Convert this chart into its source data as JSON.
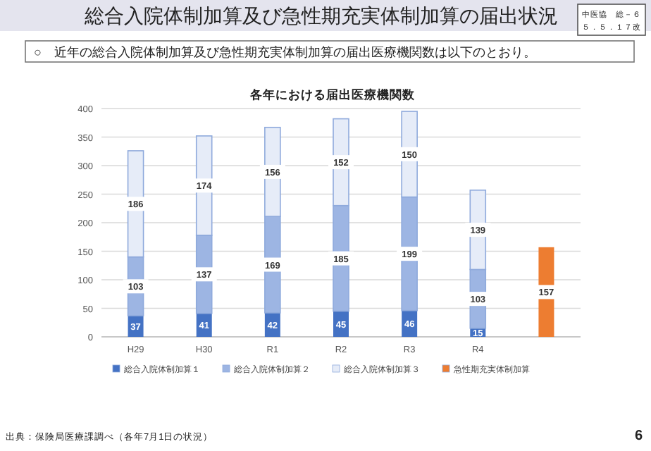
{
  "chart_data": {
    "type": "bar",
    "title": "各年における届出医療機関数",
    "categories": [
      "H29",
      "H30",
      "R1",
      "R2",
      "R3",
      "R4",
      null
    ],
    "series": [
      {
        "name": "総合入院体制加算１",
        "color": "#4472c4",
        "values": [
          37,
          41,
          42,
          45,
          46,
          15,
          null
        ]
      },
      {
        "name": "総合入院体制加算２",
        "color": "#9db5e3",
        "values": [
          103,
          137,
          169,
          185,
          199,
          103,
          null
        ]
      },
      {
        "name": "総合入院体制加算３",
        "color": "#e6ecf8",
        "values": [
          186,
          174,
          156,
          152,
          150,
          139,
          null
        ]
      },
      {
        "name": "急性期充実体制加算",
        "color": "#ed7d31",
        "values": [
          null,
          null,
          null,
          null,
          null,
          null,
          157
        ]
      }
    ],
    "stacked": true,
    "data_labels": true,
    "ylim": [
      0,
      400
    ],
    "yticks": [
      0,
      50,
      100,
      150,
      200,
      250,
      300,
      350,
      400
    ],
    "grid": "y",
    "legend": "bottom",
    "annotations": [
      "総合入院体制加算及び急性期充実体制加算の届出状況",
      "中医協　総－６",
      "５．５．１７改",
      "○　近年の総合入院体制加算及び急性期充実体制加算の届出医療機関数は以下のとおり。",
      "出典：保険局医療課調べ（各年7月1日の状況）",
      "6"
    ]
  }
}
